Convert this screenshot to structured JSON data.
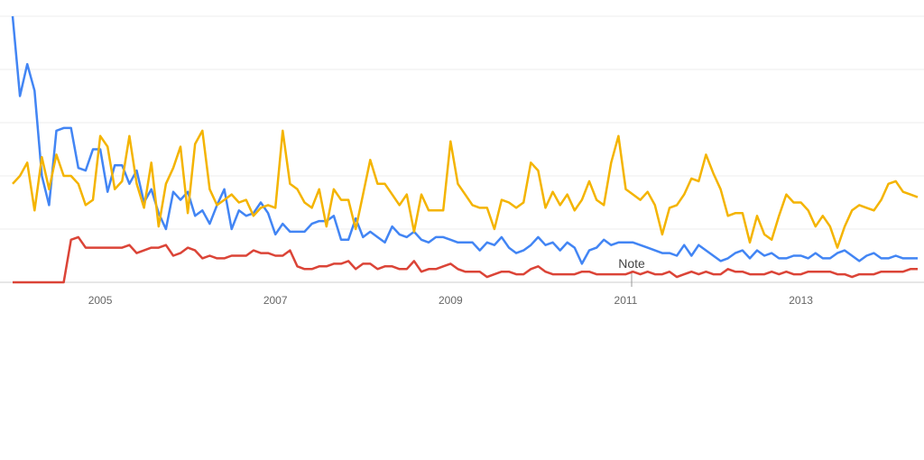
{
  "chart_data": {
    "type": "line",
    "categories": [
      null,
      null,
      null,
      null,
      null,
      null,
      null,
      null,
      null,
      null,
      null,
      null,
      "2005",
      null,
      null,
      null,
      null,
      null,
      null,
      null,
      null,
      null,
      null,
      null,
      null,
      null,
      null,
      null,
      null,
      null,
      null,
      null,
      null,
      null,
      null,
      null,
      "2007",
      null,
      null,
      null,
      null,
      null,
      null,
      null,
      null,
      null,
      null,
      null,
      null,
      null,
      null,
      null,
      null,
      null,
      null,
      null,
      null,
      null,
      null,
      null,
      "2009",
      null,
      null,
      null,
      null,
      null,
      null,
      null,
      null,
      null,
      null,
      null,
      null,
      null,
      null,
      null,
      null,
      null,
      null,
      null,
      null,
      null,
      null,
      null,
      "2011",
      null,
      null,
      null,
      null,
      null,
      null,
      null,
      null,
      null,
      null,
      null,
      null,
      null,
      null,
      null,
      null,
      null,
      null,
      null,
      null,
      null,
      null,
      null,
      "2013",
      null,
      null,
      null,
      null,
      null,
      null,
      null,
      null,
      null,
      null,
      null,
      null,
      null,
      null,
      null,
      null
    ],
    "series": [
      {
        "color": "#4285f4",
        "values": [
          100,
          70,
          82,
          72,
          40,
          29,
          57,
          58,
          58,
          43,
          42,
          50,
          50,
          34,
          44,
          44,
          37,
          42,
          30,
          35,
          26,
          20,
          34,
          31,
          34,
          25,
          27,
          22,
          29,
          35,
          20,
          27,
          25,
          26,
          30,
          26,
          18,
          22,
          19,
          19,
          19,
          22,
          23,
          23,
          25,
          16,
          16,
          24,
          17,
          19,
          17,
          15,
          21,
          18,
          17,
          19,
          16,
          15,
          17,
          17,
          16,
          15,
          15,
          15,
          12,
          15,
          14,
          17,
          13,
          11,
          12,
          14,
          17,
          14,
          15,
          12,
          15,
          13,
          7,
          12,
          13,
          16,
          14,
          15,
          15,
          15,
          14,
          13,
          12,
          11,
          11,
          10,
          14,
          10,
          14,
          12,
          10,
          8,
          9,
          11,
          12,
          9,
          12,
          10,
          11,
          9,
          9,
          10,
          10,
          9,
          11,
          9,
          9,
          11,
          12,
          10,
          8,
          10,
          11,
          9,
          9,
          10,
          9,
          9,
          9
        ]
      },
      {
        "color": "#db4437",
        "values": [
          0,
          0,
          0,
          0,
          0,
          0,
          0,
          0,
          16,
          17,
          13,
          13,
          13,
          13,
          13,
          13,
          14,
          11,
          12,
          13,
          13,
          14,
          10,
          11,
          13,
          12,
          9,
          10,
          9,
          9,
          10,
          10,
          10,
          12,
          11,
          11,
          10,
          10,
          12,
          6,
          5,
          5,
          6,
          6,
          7,
          7,
          8,
          5,
          7,
          7,
          5,
          6,
          6,
          5,
          5,
          8,
          4,
          5,
          5,
          6,
          7,
          5,
          4,
          4,
          4,
          2,
          3,
          4,
          4,
          3,
          3,
          5,
          6,
          4,
          3,
          3,
          3,
          3,
          4,
          4,
          3,
          3,
          3,
          3,
          3,
          4,
          3,
          4,
          3,
          3,
          4,
          2,
          3,
          4,
          3,
          4,
          3,
          3,
          5,
          4,
          4,
          3,
          3,
          3,
          4,
          3,
          4,
          3,
          3,
          4,
          4,
          4,
          4,
          3,
          3,
          2,
          3,
          3,
          3,
          4,
          4,
          4,
          4,
          5,
          5
        ]
      },
      {
        "color": "#f4b400",
        "values": [
          37,
          40,
          45,
          27,
          47,
          35,
          48,
          40,
          40,
          37,
          29,
          31,
          55,
          51,
          35,
          38,
          55,
          37,
          28,
          45,
          21,
          37,
          43,
          51,
          26,
          52,
          57,
          35,
          29,
          31,
          33,
          30,
          31,
          25,
          28,
          29,
          28,
          57,
          37,
          35,
          30,
          28,
          35,
          21,
          35,
          31,
          31,
          20,
          33,
          46,
          37,
          37,
          33,
          29,
          33,
          19,
          33,
          27,
          27,
          27,
          53,
          37,
          33,
          29,
          28,
          28,
          20,
          31,
          30,
          28,
          30,
          45,
          42,
          28,
          34,
          29,
          33,
          27,
          31,
          38,
          31,
          29,
          45,
          55,
          35,
          33,
          31,
          34,
          29,
          18,
          28,
          29,
          33,
          39,
          38,
          48,
          41,
          35,
          25,
          26,
          26,
          15,
          25,
          18,
          16,
          25,
          33,
          30,
          30,
          27,
          21,
          25,
          21,
          13,
          21,
          27,
          29,
          28,
          27,
          31,
          37,
          38,
          34,
          33,
          32
        ]
      }
    ],
    "ylim": [
      0,
      100
    ],
    "yticks": [
      0,
      20,
      40,
      60,
      80,
      100
    ],
    "grid": true,
    "annotation": "Note"
  }
}
